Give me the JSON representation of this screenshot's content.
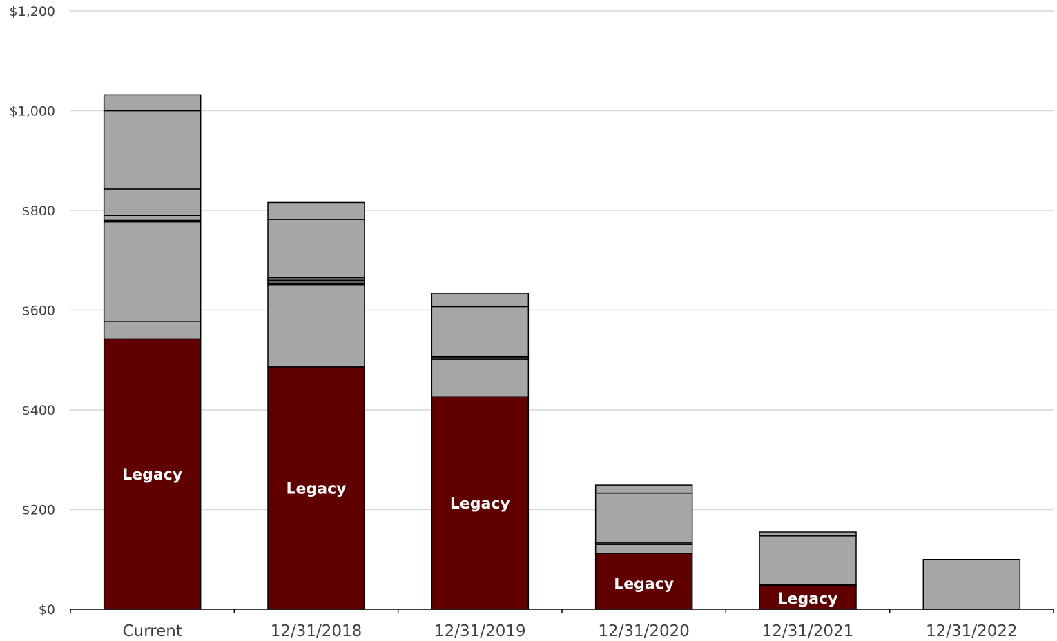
{
  "chart_data": {
    "type": "bar",
    "stacked": true,
    "title": "",
    "xlabel": "",
    "ylabel": "",
    "ylim": [
      0,
      1200
    ],
    "yticks": [
      0,
      200,
      400,
      600,
      800,
      1000,
      1200
    ],
    "ytick_labels": [
      "$0",
      "$200",
      "$400",
      "$600",
      "$800",
      "$1,000",
      "$1,200"
    ],
    "grid": true,
    "legend": "none",
    "categories": [
      "Current",
      "12/31/2018",
      "12/31/2019",
      "12/31/2020",
      "12/31/2021",
      "12/31/2022"
    ],
    "colors": {
      "legacy": "#600000",
      "other": "#a6a6a6",
      "edge": "#000000",
      "grid": "#d9d9d9"
    },
    "stacks": [
      {
        "legacy": 542,
        "segments": [
          35,
          200,
          3,
          10,
          53,
          157,
          32
        ]
      },
      {
        "legacy": 486,
        "segments": [
          165,
          3,
          3,
          3,
          5,
          117,
          34
        ]
      },
      {
        "legacy": 426,
        "segments": [
          75,
          3,
          3,
          100,
          27
        ]
      },
      {
        "legacy": 112,
        "segments": [
          18,
          3,
          100,
          16
        ]
      },
      {
        "legacy": 47,
        "segments": [
          2,
          98,
          8
        ]
      },
      {
        "legacy": 0,
        "segments": [
          100
        ]
      }
    ],
    "data_labels": [
      {
        "category": "Current",
        "text": "Legacy"
      },
      {
        "category": "12/31/2018",
        "text": "Legacy"
      },
      {
        "category": "12/31/2019",
        "text": "Legacy"
      },
      {
        "category": "12/31/2020",
        "text": "Legacy"
      },
      {
        "category": "12/31/2021",
        "text": "Legacy"
      }
    ]
  }
}
